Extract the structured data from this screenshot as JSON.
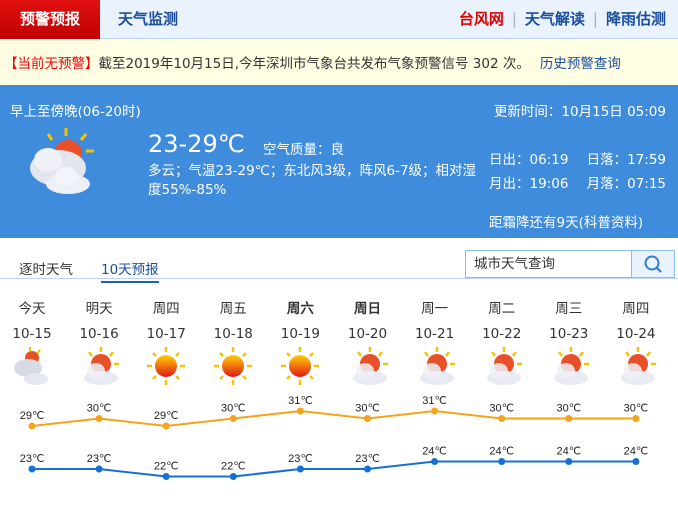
{
  "nav": {
    "active": "预警预报",
    "tab2": "天气监测",
    "links": [
      "台风网",
      "天气解读",
      "降雨估测"
    ],
    "link_colors": [
      "#e00000",
      "#1a4fa0",
      "#1a4fa0"
    ]
  },
  "warning": {
    "status": "【当前无预警】",
    "text": "截至2019年10月15日,今年深圳市气象台共发布气象预警信号 302 次。",
    "link": "历史预警查询"
  },
  "current": {
    "period": "早上至傍晚(06-20时)",
    "update": "更新时间：10月15日 05:09",
    "temp": "23-29℃",
    "aq_label": "空气质量：",
    "aq_value": "良",
    "desc": "多云；气温23-29℃；东北风3级，阵风6-7级；相对湿度55%-85%",
    "icon": "cloudy-sun",
    "sunrise": "日出：06:19",
    "sunset": "日落：17:59",
    "moonrise": "月出：19:06",
    "moonset": "月落：07:15",
    "frost": "距霜降还有9天(科普资料)"
  },
  "tabs": [
    {
      "label": "逐时天气",
      "active": false
    },
    {
      "label": "10天预报",
      "active": true
    }
  ],
  "search": {
    "placeholder": "城市天气查询",
    "icon": "search-icon"
  },
  "forecast": [
    {
      "day": "今天",
      "date": "10-15",
      "icon": "cloudy",
      "high": "29℃",
      "low": "23℃",
      "bold": false
    },
    {
      "day": "明天",
      "date": "10-16",
      "icon": "partly-cloudy",
      "high": "30℃",
      "low": "23℃",
      "bold": false
    },
    {
      "day": "周四",
      "date": "10-17",
      "icon": "sunny",
      "high": "29℃",
      "low": "22℃",
      "bold": false
    },
    {
      "day": "周五",
      "date": "10-18",
      "icon": "sunny",
      "high": "30℃",
      "low": "22℃",
      "bold": false
    },
    {
      "day": "周六",
      "date": "10-19",
      "icon": "sunny",
      "high": "31℃",
      "low": "23℃",
      "bold": true
    },
    {
      "day": "周日",
      "date": "10-20",
      "icon": "partly-cloudy",
      "high": "30℃",
      "low": "23℃",
      "bold": true
    },
    {
      "day": "周一",
      "date": "10-21",
      "icon": "partly-cloudy",
      "high": "31℃",
      "low": "24℃",
      "bold": false
    },
    {
      "day": "周二",
      "date": "10-22",
      "icon": "partly-cloudy",
      "high": "30℃",
      "low": "24℃",
      "bold": false
    },
    {
      "day": "周三",
      "date": "10-23",
      "icon": "partly-cloudy",
      "high": "30℃",
      "low": "24℃",
      "bold": false
    },
    {
      "day": "周四",
      "date": "10-24",
      "icon": "partly-cloudy",
      "high": "30℃",
      "low": "24℃",
      "bold": false
    }
  ],
  "colors": {
    "high_line": "#f5a31a",
    "low_line": "#1570d6",
    "panel": "#3f8cdc"
  }
}
